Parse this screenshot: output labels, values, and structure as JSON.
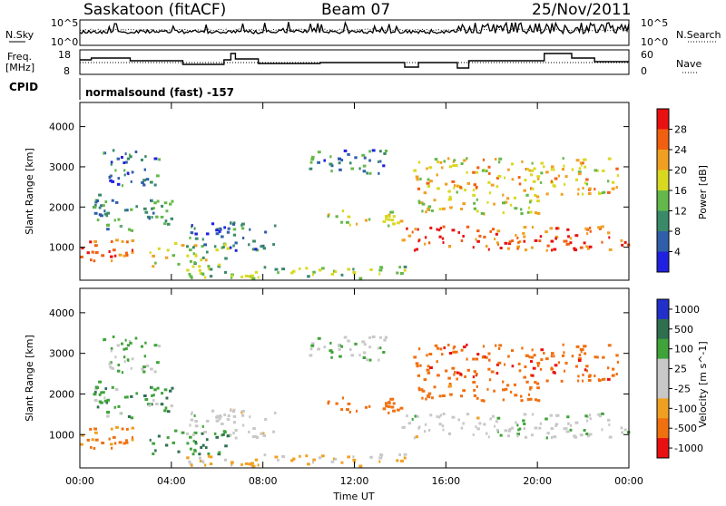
{
  "header": {
    "station": "Saskatoon (fitACF)",
    "beam": "Beam 07",
    "date": "25/Nov/2011"
  },
  "top_panel": {
    "left_label": "N.Sky",
    "right_label": "N.Search",
    "left_ticks": [
      "10^5",
      "10^0"
    ],
    "right_ticks": [
      "10^5",
      "10^0"
    ]
  },
  "freq_panel": {
    "left_label_line1": "Freq.",
    "left_label_line2": "[MHz]",
    "right_label": "Nave",
    "left_ticks": [
      "18",
      "8"
    ],
    "right_ticks": [
      "60",
      "0"
    ]
  },
  "cpid": {
    "label": "CPID",
    "value": "normalsound (fast) -157"
  },
  "xaxis": {
    "label": "Time UT",
    "ticks": [
      "00:00",
      "04:00",
      "08:00",
      "12:00",
      "16:00",
      "20:00",
      "00:00"
    ]
  },
  "power_panel": {
    "ylabel": "Slant Range [km]",
    "yticks": [
      "4000",
      "3000",
      "2000",
      "1000"
    ],
    "colorbar_label": "Power [dB]",
    "colorbar_ticks": [
      "28",
      "24",
      "20",
      "16",
      "12",
      "8",
      "4"
    ],
    "colors": [
      "#2020e0",
      "#2f5fa8",
      "#3a8a6a",
      "#64b84a",
      "#d9d820",
      "#f0a020",
      "#f06010",
      "#e81010"
    ]
  },
  "velocity_panel": {
    "ylabel": "Slant Range [km]",
    "yticks": [
      "4000",
      "3000",
      "2000",
      "1000"
    ],
    "colorbar_label": "Velocity [m s^-1]",
    "colorbar_ticks": [
      "1000",
      "500",
      "100",
      "25",
      "-25",
      "-100",
      "-500",
      "-1000"
    ],
    "colors": [
      "#2030c8",
      "#2f6f50",
      "#3fa33a",
      "#c8c8c8",
      "#c8c8c8",
      "#f0a020",
      "#f07010",
      "#e81010"
    ]
  },
  "chart_data": {
    "type": "heatmap",
    "x_range_hours": [
      0,
      24
    ],
    "y_range_km": [
      180,
      4600
    ],
    "scatter_regions": [
      {
        "t0": 0.0,
        "t1": 2.5,
        "r0": 600,
        "r1": 1200,
        "power": 26,
        "velocity": -150
      },
      {
        "t0": 0.5,
        "t1": 4.0,
        "r0": 1400,
        "r1": 2300,
        "power": 10,
        "velocity": 80
      },
      {
        "t0": 1.0,
        "t1": 3.5,
        "r0": 2500,
        "r1": 3400,
        "power": 8,
        "velocity": 30
      },
      {
        "t0": 3.0,
        "t1": 6.5,
        "r0": 500,
        "r1": 1100,
        "power": 16,
        "velocity": 120
      },
      {
        "t0": 4.5,
        "t1": 8.5,
        "r0": 900,
        "r1": 1600,
        "power": 8,
        "velocity": 0
      },
      {
        "t0": 4.0,
        "t1": 14.5,
        "r0": 200,
        "r1": 500,
        "power": 14,
        "velocity": -40
      },
      {
        "t0": 10.5,
        "t1": 14.0,
        "r0": 1500,
        "r1": 1900,
        "power": 18,
        "velocity": -300
      },
      {
        "t0": 10.0,
        "t1": 13.5,
        "r0": 2800,
        "r1": 3400,
        "power": 8,
        "velocity": 10
      },
      {
        "t0": 14.0,
        "t1": 24.0,
        "r0": 900,
        "r1": 1500,
        "power": 26,
        "velocity": 5
      },
      {
        "t0": 14.5,
        "t1": 20.0,
        "r0": 1800,
        "r1": 2300,
        "power": 18,
        "velocity": -250
      },
      {
        "t0": 14.5,
        "t1": 23.5,
        "r0": 2300,
        "r1": 3200,
        "power": 20,
        "velocity": -350
      }
    ]
  }
}
